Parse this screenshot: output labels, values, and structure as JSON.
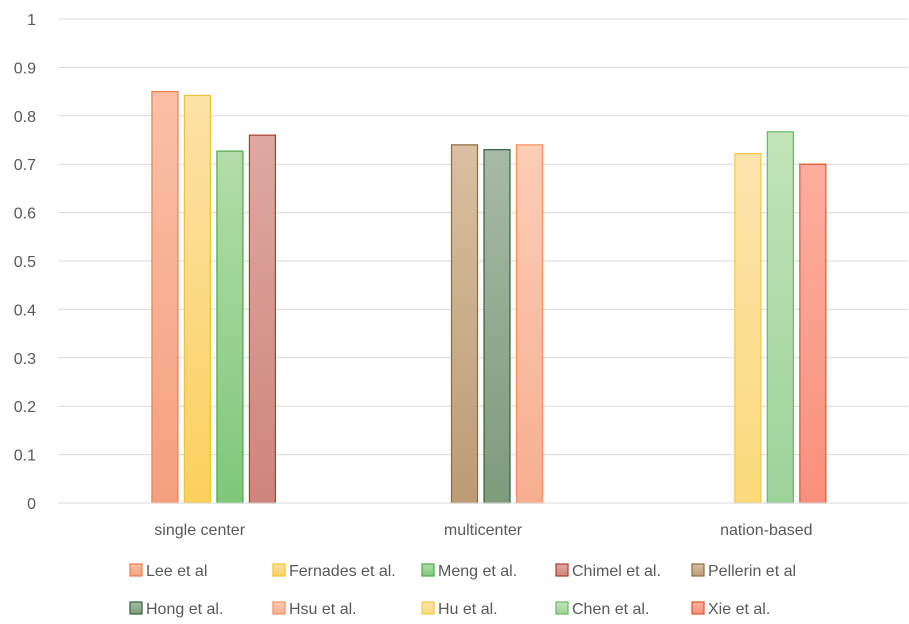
{
  "chart_data": {
    "type": "bar",
    "categories": [
      "single center",
      "multicenter",
      "nation-based"
    ],
    "ylim": [
      0,
      1
    ],
    "yticks": [
      0,
      0.1,
      0.2,
      0.3,
      0.4,
      0.5,
      0.6,
      0.7,
      0.8,
      0.9,
      1
    ],
    "ytick_labels": [
      "0",
      "0.1",
      "0.2",
      "0.3",
      "0.4",
      "0.5",
      "0.6",
      "0.7",
      "0.8",
      "0.9",
      "1"
    ],
    "grid": true,
    "legend_position": "bottom",
    "series": [
      {
        "name": "Lee et al",
        "color_top": "#FCBFA6",
        "color_bottom": "#F4A07E",
        "border": "#E8804F",
        "values": [
          0.85,
          null,
          null
        ]
      },
      {
        "name": "Fernades et al.",
        "color_top": "#FDE2A8",
        "color_bottom": "#FCD05E",
        "border": "#F2C230",
        "values": [
          0.842,
          null,
          null
        ]
      },
      {
        "name": "Meng et al.",
        "color_top": "#B3DDAA",
        "color_bottom": "#7FC77A",
        "border": "#4DA84A",
        "values": [
          0.727,
          null,
          null
        ]
      },
      {
        "name": "Chimel et al.",
        "color_top": "#DDA9A2",
        "color_bottom": "#CE857B",
        "border": "#A8402E",
        "values": [
          0.76,
          null,
          null
        ]
      },
      {
        "name": "Pellerin et al",
        "color_top": "#D8C0A2",
        "color_bottom": "#BC9B75",
        "border": "#8C6C40",
        "values": [
          null,
          0.74,
          null
        ]
      },
      {
        "name": "Hong et al.",
        "color_top": "#A8B9A6",
        "color_bottom": "#7E9B7C",
        "border": "#35613A",
        "values": [
          null,
          0.73,
          null
        ]
      },
      {
        "name": "Hsu et al.",
        "color_top": "#FDCDB6",
        "color_bottom": "#F8AE8F",
        "border": "#F2915E",
        "values": [
          null,
          0.74,
          null
        ]
      },
      {
        "name": "Hu et al.",
        "color_top": "#FDE4AE",
        "color_bottom": "#FCD97A",
        "border": "#F4C94A",
        "values": [
          null,
          null,
          0.722
        ]
      },
      {
        "name": "Chen et al.",
        "color_top": "#C2E4B8",
        "color_bottom": "#9CD39A",
        "border": "#66B864",
        "values": [
          null,
          null,
          0.767
        ]
      },
      {
        "name": "Xie et al.",
        "color_top": "#FDAE9E",
        "color_bottom": "#F9907D",
        "border": "#E0542E",
        "values": [
          null,
          null,
          0.7
        ]
      }
    ]
  }
}
